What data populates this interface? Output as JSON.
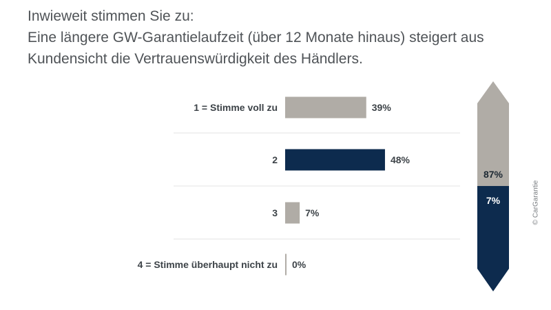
{
  "title": {
    "line1": "Inwieweit stimmen Sie zu:",
    "line2": "Eine längere GW-Garantielaufzeit (über 12 Monate hinaus) steigert aus",
    "line3": "Kundensicht die Vertrauenswürdigkeit des Händlers."
  },
  "copyright": "© CarGarantie",
  "colors": {
    "gray": "#b0aca6",
    "navy": "#0d2b4e",
    "text": "#3d4348",
    "divider": "#e3e3e3"
  },
  "chart_data": {
    "type": "bar",
    "orientation": "horizontal",
    "categories": [
      "1 = Stimme voll zu",
      "2",
      "3",
      "4 = Stimme überhaupt nicht zu"
    ],
    "values": [
      39,
      48,
      7,
      0
    ],
    "value_labels": [
      "39%",
      "48%",
      "7%",
      "0%"
    ],
    "bar_colors": [
      "#b0aca6",
      "#0d2b4e",
      "#b0aca6",
      "#b0aca6"
    ],
    "unit": "%",
    "summary": [
      {
        "label": "87%",
        "value": 87,
        "color": "#b0aca6",
        "text_color": "#1c2833"
      },
      {
        "label": "7%",
        "value": 7,
        "color": "#0d2b4e",
        "text_color": "#ffffff"
      }
    ]
  }
}
